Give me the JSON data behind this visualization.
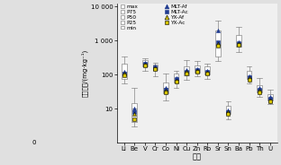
{
  "elements": [
    "Li",
    "Be",
    "V",
    "Cr",
    "Co",
    "Ni",
    "Cu",
    "Zn",
    "Rb",
    "Sr",
    "Sn",
    "Ba",
    "Pb",
    "Th",
    "U"
  ],
  "box_data": {
    "Li": {
      "min": 55,
      "p25": 75,
      "p50": 120,
      "p75": 210,
      "max": 350
    },
    "Be": {
      "min": 3,
      "p25": 4,
      "p50": 10,
      "p75": 15,
      "max": 40
    },
    "V": {
      "min": 130,
      "p25": 180,
      "p50": 220,
      "p75": 270,
      "max": 310
    },
    "Cr": {
      "min": 90,
      "p25": 140,
      "p50": 170,
      "p75": 200,
      "max": 220
    },
    "Co": {
      "min": 18,
      "p25": 28,
      "p50": 40,
      "p75": 58,
      "max": 110
    },
    "Ni": {
      "min": 40,
      "p25": 60,
      "p50": 80,
      "p75": 110,
      "max": 130
    },
    "Cu": {
      "min": 70,
      "p25": 95,
      "p50": 130,
      "p75": 180,
      "max": 260
    },
    "Zn": {
      "min": 90,
      "p25": 115,
      "p50": 145,
      "p75": 190,
      "max": 250
    },
    "Rb": {
      "min": 75,
      "p25": 100,
      "p50": 130,
      "p75": 175,
      "max": 210
    },
    "Sr": {
      "min": 250,
      "p25": 350,
      "p50": 750,
      "p75": 2000,
      "max": 3800
    },
    "Sn": {
      "min": 5,
      "p25": 7,
      "p50": 9,
      "p75": 12,
      "max": 16
    },
    "Ba": {
      "min": 450,
      "p25": 650,
      "p50": 900,
      "p75": 1500,
      "max": 2500
    },
    "Pb": {
      "min": 55,
      "p25": 75,
      "p50": 90,
      "p75": 130,
      "max": 170
    },
    "Th": {
      "min": 22,
      "p25": 30,
      "p50": 38,
      "p75": 48,
      "max": 80
    },
    "U": {
      "min": 14,
      "p25": 17,
      "p50": 21,
      "p75": 27,
      "max": 36
    }
  },
  "markers": {
    "Li": {
      "MLT_Af": 125,
      "MLT_Ac": 110,
      "YX_Af": 105,
      "YX_Ac": 95
    },
    "Be": {
      "MLT_Af": 10,
      "MLT_Ac": 8,
      "YX_Af": 7,
      "YX_Ac": 5
    },
    "V": {
      "MLT_Af": 225,
      "MLT_Ac": 210,
      "YX_Af": 200,
      "YX_Ac": 185
    },
    "Cr": {
      "MLT_Af": 175,
      "MLT_Ac": 162,
      "YX_Af": 155,
      "YX_Ac": 145
    },
    "Co": {
      "MLT_Af": 42,
      "MLT_Ac": 37,
      "YX_Af": 34,
      "YX_Ac": 30
    },
    "Ni": {
      "MLT_Af": 82,
      "MLT_Ac": 75,
      "YX_Af": 68,
      "YX_Ac": 62
    },
    "Cu": {
      "MLT_Af": 135,
      "MLT_Ac": 125,
      "YX_Af": 120,
      "YX_Ac": 110
    },
    "Zn": {
      "MLT_Af": 148,
      "MLT_Ac": 138,
      "YX_Af": 132,
      "YX_Ac": 120
    },
    "Rb": {
      "MLT_Af": 132,
      "MLT_Ac": 122,
      "YX_Af": 115,
      "YX_Ac": 105
    },
    "Sr": {
      "MLT_Af": 2000,
      "MLT_Ac": 900,
      "YX_Af": 800,
      "YX_Ac": 700
    },
    "Sn": {
      "MLT_Af": 9,
      "MLT_Ac": 8,
      "YX_Af": 8,
      "YX_Ac": 7
    },
    "Ba": {
      "MLT_Af": 920,
      "MLT_Ac": 840,
      "YX_Af": 800,
      "YX_Ac": 740
    },
    "Pb": {
      "MLT_Af": 92,
      "MLT_Ac": 83,
      "YX_Af": 78,
      "YX_Ac": 70
    },
    "Th": {
      "MLT_Af": 40,
      "MLT_Ac": 36,
      "YX_Af": 34,
      "YX_Ac": 30
    },
    "U": {
      "MLT_Af": 22,
      "MLT_Ac": 20,
      "YX_Af": 18,
      "YX_Ac": 16
    }
  },
  "box_legend_labels": [
    "max",
    "P75",
    "P50",
    "P25",
    "min"
  ],
  "marker_legend": [
    {
      "key": "MLT_Af",
      "label": "MLT-Af",
      "color": "#1f3a8f",
      "marker": "^"
    },
    {
      "key": "MLT_Ac",
      "label": "MLT-Ac",
      "color": "#1f3a8f",
      "marker": "s"
    },
    {
      "key": "YX_Af",
      "label": "YX-Af",
      "color": "#d4c200",
      "marker": "^"
    },
    {
      "key": "YX_Ac",
      "label": "YX-Ac",
      "color": "#d4c200",
      "marker": "s"
    }
  ],
  "ylabel": "质量分数/(mg·kg⁻¹)",
  "xlabel": "元素",
  "ylim_log_min": 1,
  "ylim_log_max": 10000,
  "ytick_vals": [
    10,
    100,
    1000,
    10000
  ],
  "ytick_labels": [
    "10",
    "100",
    "1 000",
    "10 000"
  ],
  "bg_color": "#e0e0e0",
  "plot_bg_color": "#f0f0f0",
  "box_face_color": "white",
  "box_edge_color": "#888888",
  "box_width": 0.5
}
